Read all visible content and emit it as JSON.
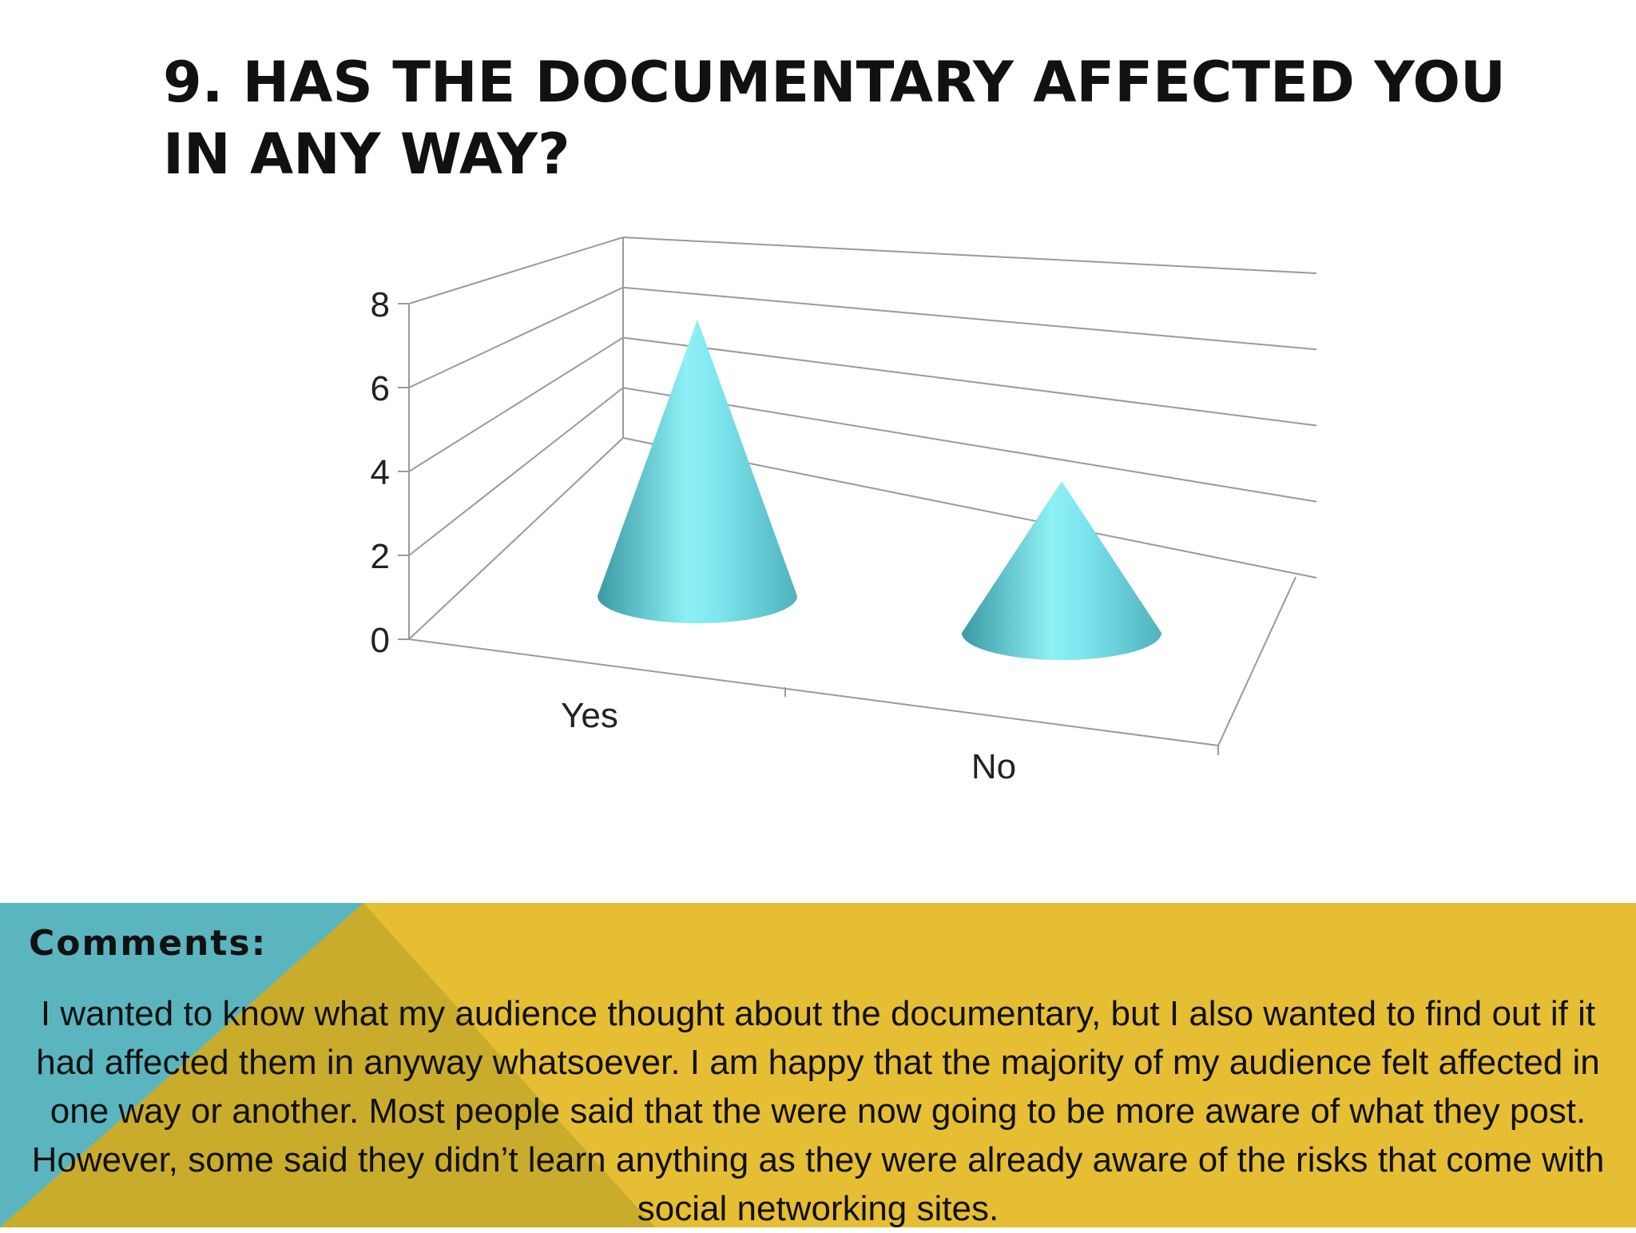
{
  "slide": {
    "title": "9. Has the documentary affected you in any way?"
  },
  "colors": {
    "cone": "#5cc6d0",
    "footer_yellow": "#e6be34",
    "footer_teal": "#5bb5bf",
    "footer_olive": "#c9ac2c"
  },
  "chart_data": {
    "type": "bar",
    "style": "3d-cone",
    "categories": [
      "Yes",
      "No"
    ],
    "values": [
      7,
      4
    ],
    "ylim": [
      0,
      8
    ],
    "yticks": [
      "0",
      "2",
      "4",
      "6",
      "8"
    ],
    "grid": true
  },
  "comments": {
    "heading": "Comments:",
    "body": "I wanted to know what my audience thought about the documentary, but I also wanted to find out if it had affected them in anyway whatsoever. I am happy that the majority of my audience felt affected in one way or another. Most people said that the were now going to be more aware of what they post. However, some said they didn’t learn anything as they were already aware of the risks that come with social networking sites."
  }
}
